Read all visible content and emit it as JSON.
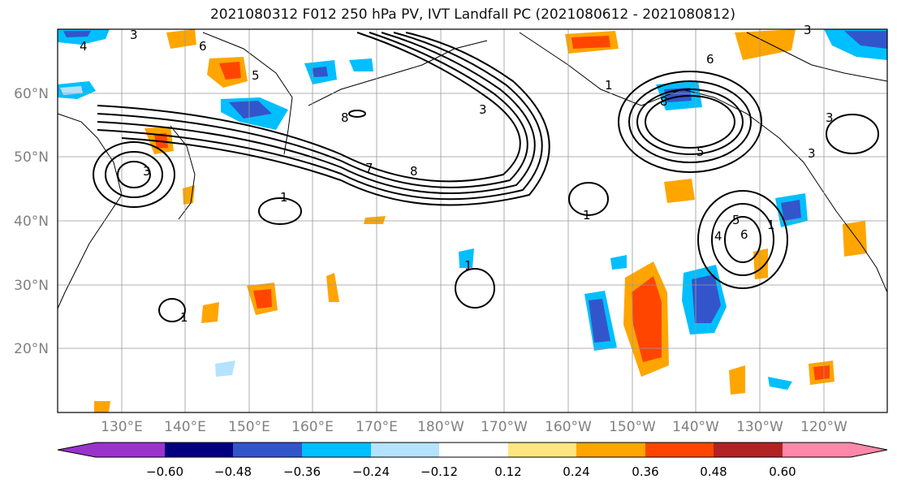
{
  "title": "2021080312 F012 250 hPa PV, IVT Landfall PC (2021080612 - 2021080812)",
  "map": {
    "projection": "cylindrical",
    "lon_range": [
      120,
      250
    ],
    "lat_range": [
      10,
      70
    ],
    "lat_labels": [
      "20°N",
      "30°N",
      "40°N",
      "50°N",
      "60°N"
    ],
    "lat_values": [
      20,
      30,
      40,
      50,
      60
    ],
    "lon_labels": [
      "130°E",
      "140°E",
      "150°E",
      "160°E",
      "170°E",
      "180°W",
      "170°W",
      "160°W",
      "150°W",
      "140°W",
      "130°W",
      "120°W"
    ],
    "lon_values": [
      130,
      140,
      150,
      160,
      170,
      180,
      190,
      200,
      210,
      220,
      230,
      240
    ],
    "label_color": "#808080",
    "contour_labels": [
      "3",
      "4",
      "6",
      "5",
      "1",
      "8",
      "7",
      "8",
      "3",
      "3",
      "1",
      "1",
      "8",
      "6",
      "3",
      "5",
      "1",
      "1",
      "6",
      "5",
      "4",
      "3",
      "1",
      "3"
    ]
  },
  "colorbar": {
    "tick_labels": [
      "−0.60",
      "−0.48",
      "−0.36",
      "−0.24",
      "−0.12",
      "0.12",
      "0.24",
      "0.36",
      "0.48",
      "0.60"
    ],
    "colors": [
      "#9933cc",
      "#000080",
      "#3355cc",
      "#00bfff",
      "#b3e3ff",
      "#ffffff",
      "#ffe680",
      "#ffa500",
      "#ff4500",
      "#b22222",
      "#ff88aa"
    ]
  }
}
